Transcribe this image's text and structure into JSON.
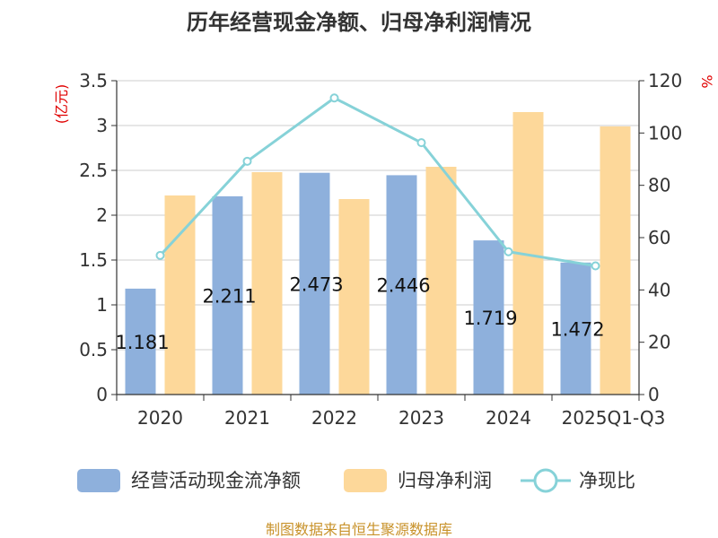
{
  "chart_data": {
    "type": "bar",
    "title": "历年经营现金净额、归母净利润情况",
    "categories": [
      "2020",
      "2021",
      "2022",
      "2023",
      "2024",
      "2025Q1-Q3"
    ],
    "series": [
      {
        "name": "经营活动现金流净额",
        "type": "bar",
        "axis": "left",
        "color": "#8eb0dc",
        "values": [
          1.181,
          2.211,
          2.473,
          2.446,
          1.719,
          1.472
        ],
        "labels": [
          "1.181",
          "2.211",
          "2.473",
          "2.446",
          "1.719",
          "1.472"
        ]
      },
      {
        "name": "归母净利润",
        "type": "bar",
        "axis": "left",
        "color": "#fdd89a",
        "values": [
          2.22,
          2.48,
          2.18,
          2.54,
          3.15,
          2.99
        ]
      },
      {
        "name": "净现比",
        "type": "line",
        "axis": "right",
        "color": "#86d2d8",
        "values": [
          53.2,
          89.2,
          113.4,
          96.3,
          54.6,
          49.2
        ]
      }
    ],
    "y_left": {
      "unit": "(亿元)",
      "ylim": [
        0,
        3.5
      ],
      "ticks": [
        "0",
        "0.5",
        "1",
        "1.5",
        "2",
        "2.5",
        "3",
        "3.5"
      ]
    },
    "y_right": {
      "unit": "%",
      "ylim": [
        0,
        120
      ],
      "ticks": [
        "0",
        "20",
        "40",
        "60",
        "80",
        "100",
        "120"
      ]
    },
    "grid": true,
    "legend_position": "bottom",
    "source": "制图数据来自恒生聚源数据库"
  }
}
